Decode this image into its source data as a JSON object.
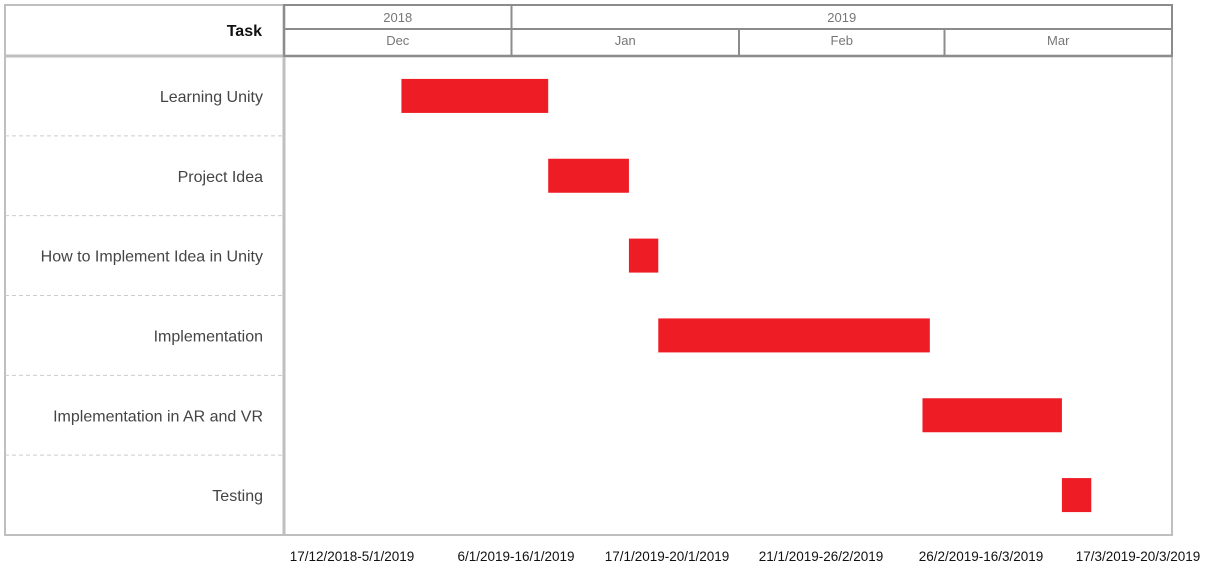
{
  "chart_data": {
    "type": "gantt",
    "task_header": "Task",
    "years": [
      {
        "label": "2018",
        "start": "2018-12-01",
        "end": "2019-01-01"
      },
      {
        "label": "2019",
        "start": "2019-01-01",
        "end": "2019-04-01"
      }
    ],
    "months": [
      {
        "label": "Dec",
        "start": "2018-12-01",
        "end": "2019-01-01"
      },
      {
        "label": "Jan",
        "start": "2019-01-01",
        "end": "2019-02-01"
      },
      {
        "label": "Feb",
        "start": "2019-02-01",
        "end": "2019-03-01"
      },
      {
        "label": "Mar",
        "start": "2019-03-01",
        "end": "2019-04-01"
      }
    ],
    "tasks": [
      {
        "name": "Learning Unity",
        "start": "2018-12-17",
        "end": "2019-01-05",
        "date_label": "17/12/2018-5/1/2019"
      },
      {
        "name": "Project Idea",
        "start": "2019-01-06",
        "end": "2019-01-16",
        "date_label": "6/1/2019-16/1/2019"
      },
      {
        "name": "How to Implement Idea in Unity",
        "start": "2019-01-17",
        "end": "2019-01-20",
        "date_label": "17/1/2019-20/1/2019"
      },
      {
        "name": "Implementation",
        "start": "2019-01-21",
        "end": "2019-02-26",
        "date_label": "21/1/2019-26/2/2019"
      },
      {
        "name": "Implementation in AR and VR",
        "start": "2019-02-26",
        "end": "2019-03-16",
        "date_label": "26/2/2019-16/3/2019"
      },
      {
        "name": "Testing",
        "start": "2019-03-17",
        "end": "2019-03-20",
        "date_label": "17/3/2019-20/3/2019"
      }
    ],
    "bar_color": "#ee1c25",
    "grid": true
  }
}
